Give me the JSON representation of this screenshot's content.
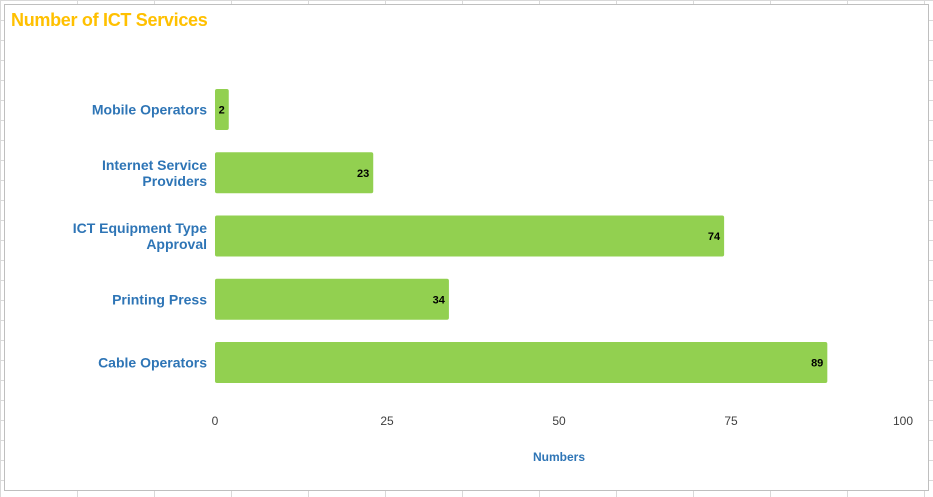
{
  "chart_data": {
    "type": "bar",
    "orientation": "horizontal",
    "title": "Number of ICT Services",
    "xlabel": "Numbers",
    "ylabel": "",
    "categories": [
      [
        "Mobile Operators"
      ],
      [
        "Internet Service",
        "Providers"
      ],
      [
        "ICT Equipment Type",
        "Approval"
      ],
      [
        "Printing Press"
      ],
      [
        "Cable Operators"
      ]
    ],
    "values": [
      2,
      23,
      74,
      34,
      89
    ],
    "xlim": [
      0,
      100
    ],
    "ticks": [
      0,
      25,
      50,
      75,
      100
    ],
    "grid": false,
    "legend": "none",
    "bar_color": "#92d050",
    "category_color": "#2e75b6",
    "title_color": "#ffc000"
  }
}
